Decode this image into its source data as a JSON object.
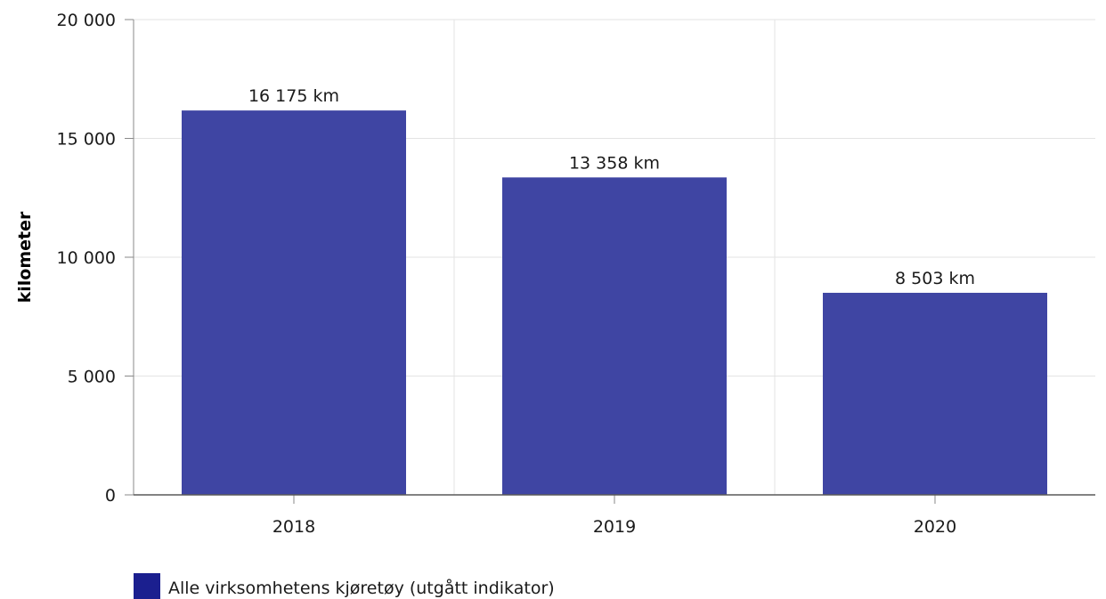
{
  "chart_data": {
    "type": "bar",
    "title": "",
    "xlabel": "",
    "ylabel": "kilometer",
    "categories": [
      "2018",
      "2019",
      "2020"
    ],
    "series": [
      {
        "name": "Alle virksomhetens kjøretøy (utgått indikator)",
        "values": [
          16175,
          13358,
          8503
        ],
        "data_labels": [
          "16 175 km",
          "13 358 km",
          "8 503 km"
        ],
        "color": "#3f45a3"
      }
    ],
    "ylim": [
      0,
      20000
    ],
    "yticks": [
      0,
      5000,
      10000,
      15000,
      20000
    ],
    "ytick_labels": [
      "0",
      "5 000",
      "10 000",
      "15 000",
      "20 000"
    ],
    "grid": true,
    "legend": {
      "position": "bottom-left",
      "swatch_color": "#1b1f8f"
    }
  }
}
